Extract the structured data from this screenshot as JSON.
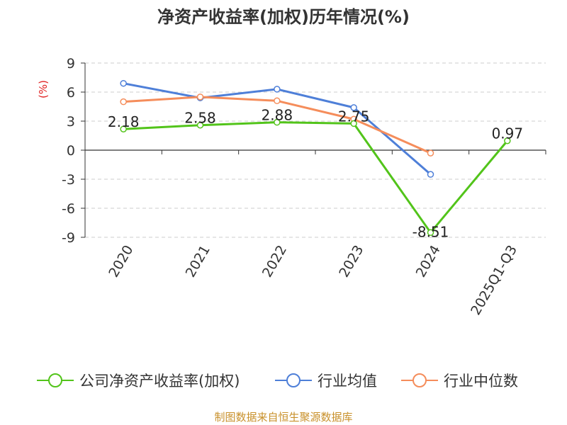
{
  "chart_data": {
    "type": "line",
    "title": "净资产收益率(加权)历年情况(%)",
    "ylabel": "(%)",
    "xlabel": "",
    "categories": [
      "2020",
      "2021",
      "2022",
      "2023",
      "2024",
      "2025Q1-Q3"
    ],
    "ylim": [
      -9,
      9
    ],
    "yticks": [
      "9",
      "6",
      "3",
      "0",
      "-3",
      "-6",
      "-9"
    ],
    "grid": true,
    "legend_position": "bottom",
    "series": [
      {
        "name": "公司净资产收益率(加权)",
        "color": "#52c41a",
        "values": [
          2.18,
          2.58,
          2.88,
          2.75,
          -8.51,
          0.97
        ],
        "labels": [
          "2.18",
          "2.58",
          "2.88",
          "2.75",
          "-8.51",
          "0.97"
        ]
      },
      {
        "name": "行业均值",
        "color": "#4e7fd8",
        "values": [
          6.9,
          5.4,
          6.3,
          4.4,
          -2.5,
          null
        ]
      },
      {
        "name": "行业中位数",
        "color": "#f58d5b",
        "values": [
          5.0,
          5.5,
          5.1,
          3.2,
          -0.3,
          null
        ]
      }
    ],
    "ylabel_color": "#e02020"
  },
  "footer": {
    "text": "制图数据来自恒生聚源数据库",
    "color": "#c8902a"
  }
}
